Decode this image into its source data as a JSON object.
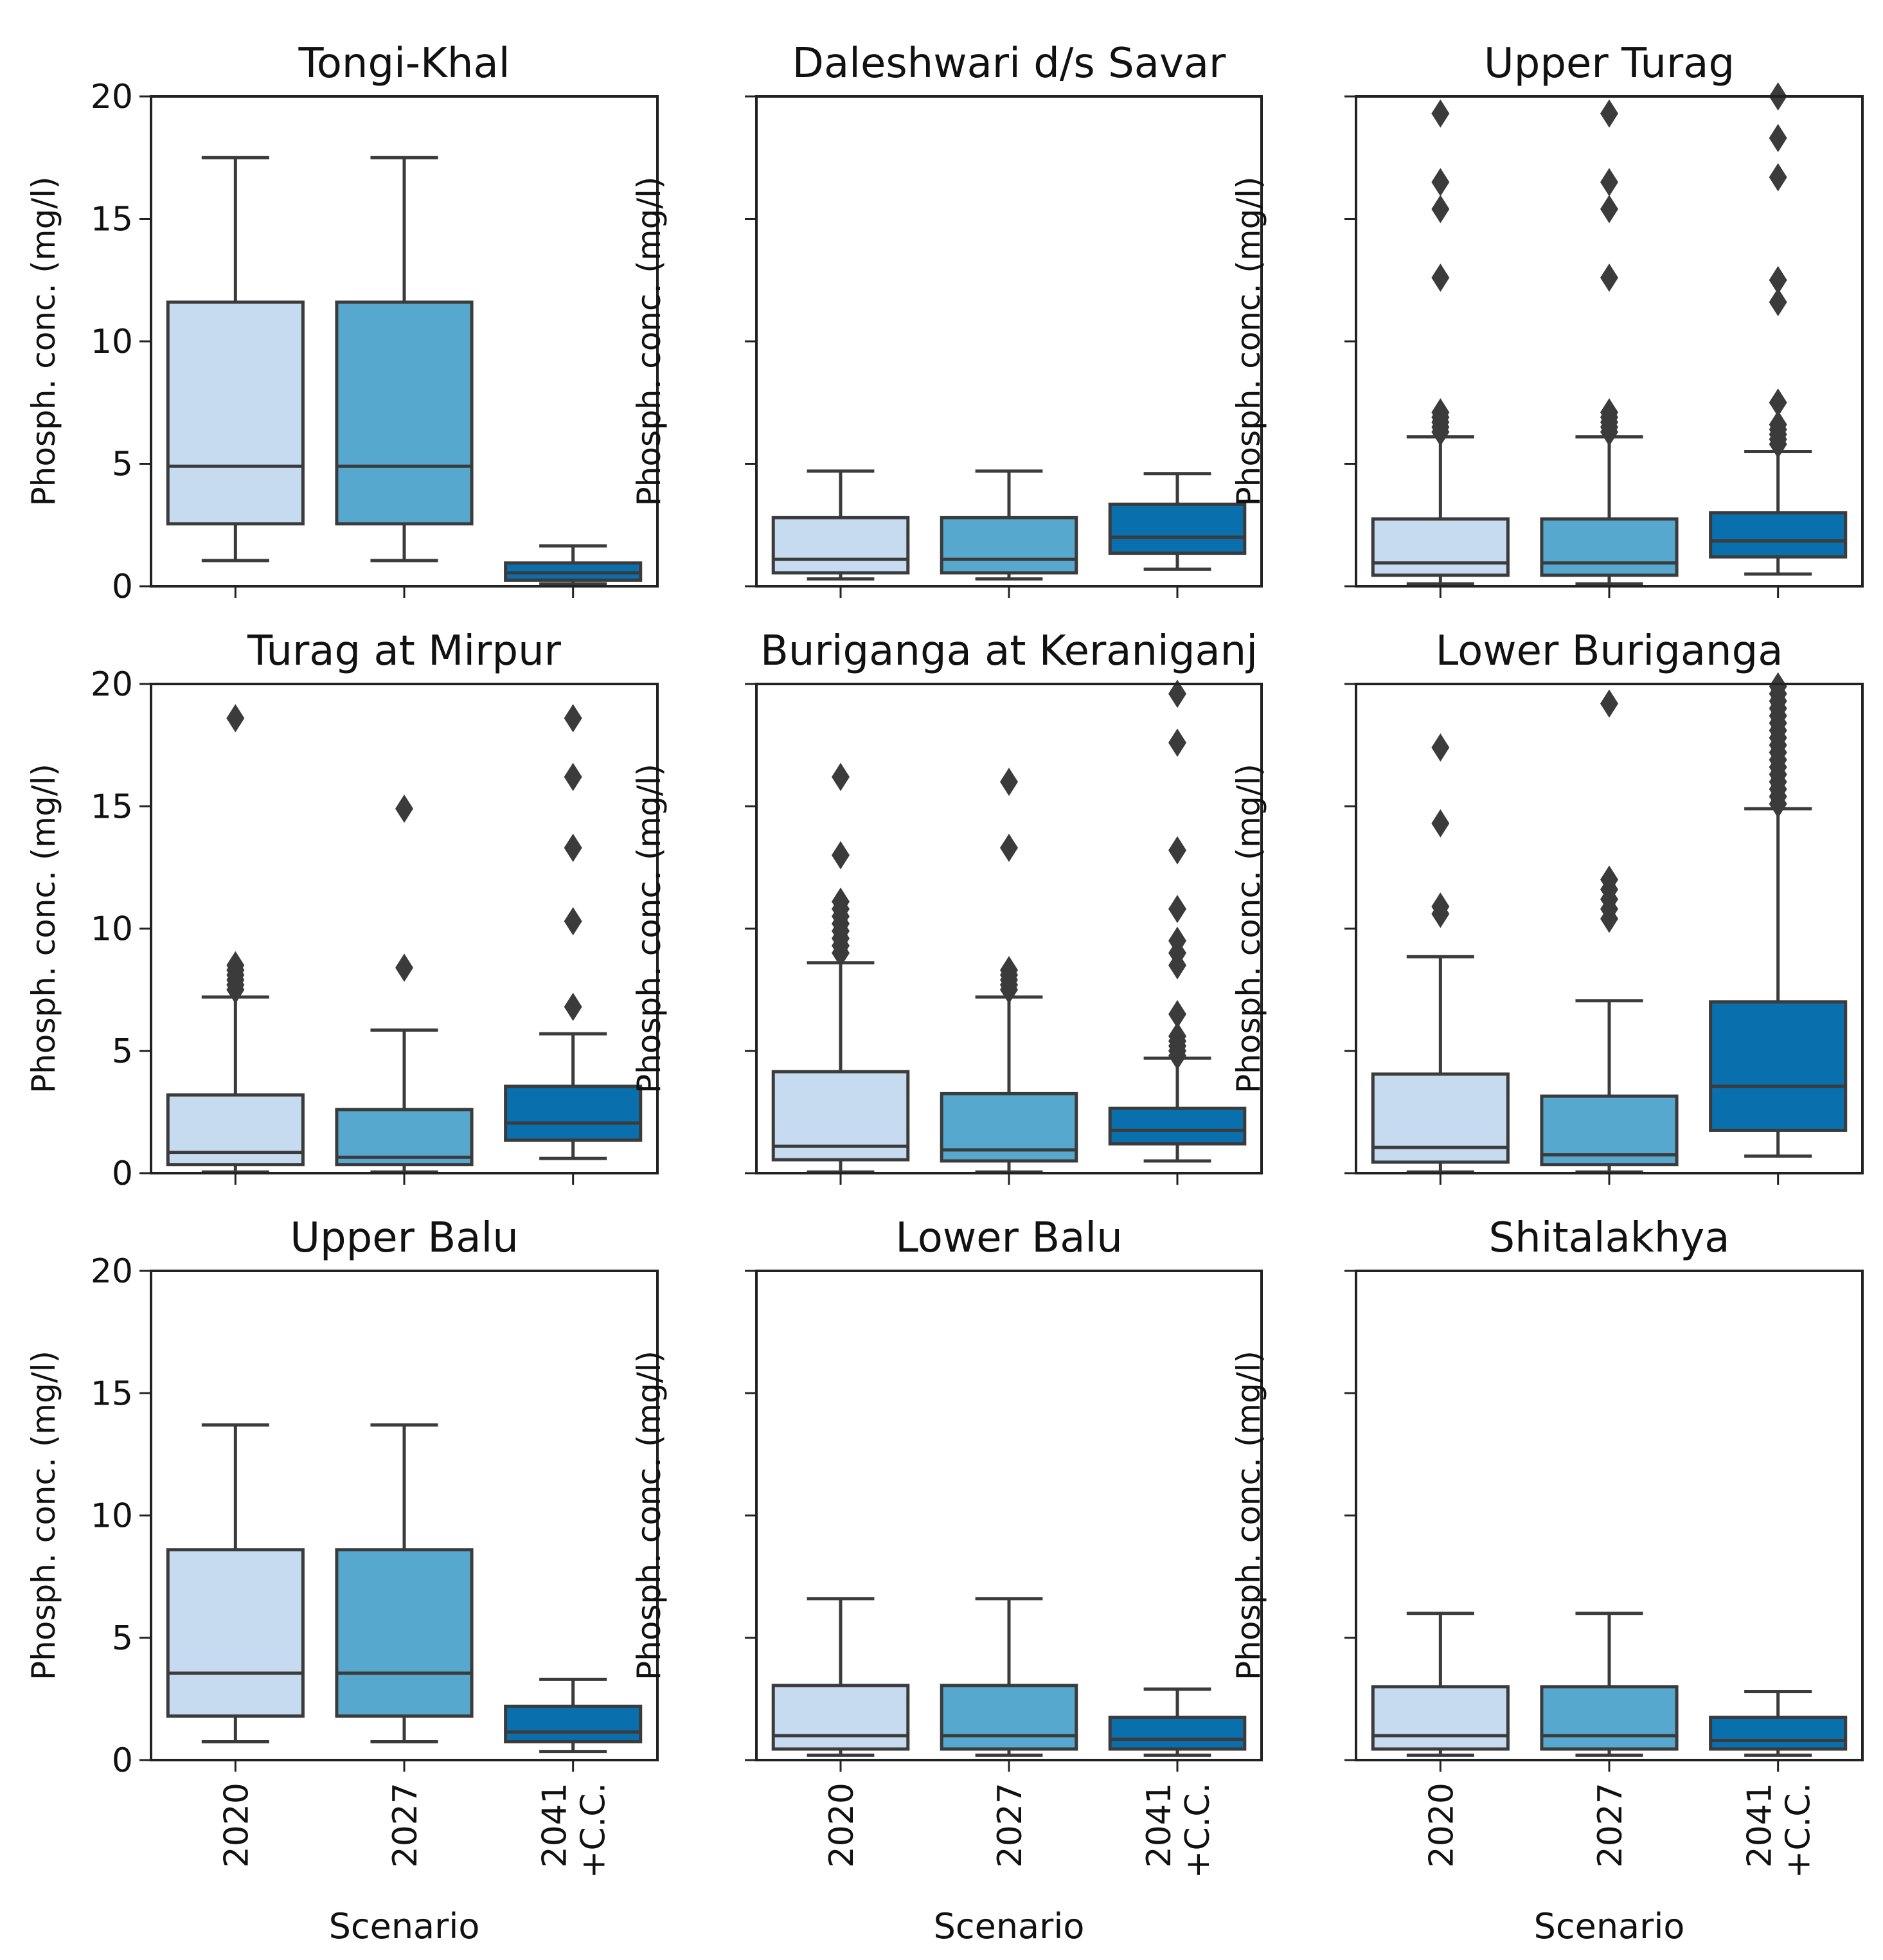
{
  "chart_data": {
    "type": "boxplot",
    "ylabel": "Phosph. conc. (mg/l)",
    "xlabel": "Scenario",
    "ylim": [
      0,
      20
    ],
    "yticks": [
      0,
      5,
      10,
      15,
      20
    ],
    "categories": [
      "2020",
      "2027",
      "2041\n+C.C."
    ],
    "category_labels": [
      [
        "2020"
      ],
      [
        "2027"
      ],
      [
        "2041",
        "+C.C."
      ]
    ],
    "colors": [
      "#c6dbef",
      "#56a8cf",
      "#0a6fad"
    ],
    "panels": [
      {
        "title": "Tongi-Khal",
        "boxes": [
          {
            "whislo": 1.05,
            "q1": 2.55,
            "med": 4.9,
            "q3": 11.6,
            "whishi": 17.5,
            "fliers": []
          },
          {
            "whislo": 1.05,
            "q1": 2.55,
            "med": 4.9,
            "q3": 11.6,
            "whishi": 17.5,
            "fliers": []
          },
          {
            "whislo": 0.1,
            "q1": 0.25,
            "med": 0.55,
            "q3": 0.95,
            "whishi": 1.65,
            "fliers": []
          }
        ]
      },
      {
        "title": "Daleshwari d/s Savar",
        "boxes": [
          {
            "whislo": 0.3,
            "q1": 0.55,
            "med": 1.1,
            "q3": 2.8,
            "whishi": 4.7,
            "fliers": []
          },
          {
            "whislo": 0.3,
            "q1": 0.55,
            "med": 1.1,
            "q3": 2.8,
            "whishi": 4.7,
            "fliers": []
          },
          {
            "whislo": 0.7,
            "q1": 1.35,
            "med": 2.0,
            "q3": 3.35,
            "whishi": 4.6,
            "fliers": []
          }
        ]
      },
      {
        "title": "Upper Turag",
        "boxes": [
          {
            "whislo": 0.1,
            "q1": 0.45,
            "med": 0.95,
            "q3": 2.75,
            "whishi": 6.1,
            "fliers": [
              6.3,
              6.5,
              6.7,
              6.9,
              7.1,
              12.6,
              15.4,
              16.5,
              19.3
            ]
          },
          {
            "whislo": 0.1,
            "q1": 0.45,
            "med": 0.95,
            "q3": 2.75,
            "whishi": 6.1,
            "fliers": [
              6.3,
              6.5,
              6.7,
              6.9,
              7.1,
              12.6,
              15.4,
              16.5,
              19.3
            ]
          },
          {
            "whislo": 0.5,
            "q1": 1.2,
            "med": 1.85,
            "q3": 3.0,
            "whishi": 5.5,
            "fliers": [
              5.8,
              6.0,
              6.2,
              6.4,
              6.6,
              7.5,
              11.6,
              12.5,
              16.7,
              18.3,
              20.0
            ]
          }
        ]
      },
      {
        "title": "Turag at Mirpur",
        "boxes": [
          {
            "whislo": 0.05,
            "q1": 0.35,
            "med": 0.85,
            "q3": 3.2,
            "whishi": 7.2,
            "fliers": [
              7.5,
              7.7,
              7.9,
              8.1,
              8.3,
              8.5,
              18.6
            ]
          },
          {
            "whislo": 0.05,
            "q1": 0.35,
            "med": 0.65,
            "q3": 2.6,
            "whishi": 5.85,
            "fliers": [
              8.4,
              14.9
            ]
          },
          {
            "whislo": 0.6,
            "q1": 1.35,
            "med": 2.05,
            "q3": 3.55,
            "whishi": 5.7,
            "fliers": [
              6.8,
              10.3,
              13.3,
              16.2,
              18.6
            ]
          }
        ]
      },
      {
        "title": "Buriganga at Keraniganj",
        "boxes": [
          {
            "whislo": 0.05,
            "q1": 0.55,
            "med": 1.1,
            "q3": 4.15,
            "whishi": 8.6,
            "fliers": [
              9.0,
              9.3,
              9.6,
              9.9,
              10.2,
              10.5,
              10.8,
              11.1,
              13.0,
              16.2
            ]
          },
          {
            "whislo": 0.05,
            "q1": 0.5,
            "med": 0.95,
            "q3": 3.25,
            "whishi": 7.2,
            "fliers": [
              7.5,
              7.7,
              7.9,
              8.1,
              8.3,
              13.3,
              16.0
            ]
          },
          {
            "whislo": 0.5,
            "q1": 1.2,
            "med": 1.75,
            "q3": 2.65,
            "whishi": 4.7,
            "fliers": [
              4.8,
              5.0,
              5.2,
              5.4,
              5.6,
              6.5,
              8.5,
              9.0,
              9.5,
              10.8,
              13.2,
              17.6,
              19.6
            ]
          }
        ]
      },
      {
        "title": "Lower Buriganga",
        "boxes": [
          {
            "whislo": 0.05,
            "q1": 0.45,
            "med": 1.05,
            "q3": 4.05,
            "whishi": 8.85,
            "fliers": [
              10.6,
              10.9,
              14.3,
              17.4
            ]
          },
          {
            "whislo": 0.05,
            "q1": 0.35,
            "med": 0.75,
            "q3": 3.15,
            "whishi": 7.05,
            "fliers": [
              10.4,
              10.8,
              11.2,
              11.6,
              12.0,
              19.2
            ]
          },
          {
            "whislo": 0.7,
            "q1": 1.75,
            "med": 3.55,
            "q3": 7.0,
            "whishi": 14.9,
            "fliers": [
              15.1,
              15.4,
              15.7,
              16.0,
              16.3,
              16.6,
              16.9,
              17.2,
              17.5,
              17.8,
              18.1,
              18.4,
              18.7,
              19.0,
              19.3,
              19.6,
              19.9
            ]
          }
        ]
      },
      {
        "title": "Upper Balu",
        "boxes": [
          {
            "whislo": 0.75,
            "q1": 1.8,
            "med": 3.55,
            "q3": 8.6,
            "whishi": 13.7,
            "fliers": []
          },
          {
            "whislo": 0.75,
            "q1": 1.8,
            "med": 3.55,
            "q3": 8.6,
            "whishi": 13.7,
            "fliers": []
          },
          {
            "whislo": 0.35,
            "q1": 0.75,
            "med": 1.15,
            "q3": 2.2,
            "whishi": 3.3,
            "fliers": []
          }
        ]
      },
      {
        "title": "Lower Balu",
        "boxes": [
          {
            "whislo": 0.2,
            "q1": 0.45,
            "med": 1.0,
            "q3": 3.05,
            "whishi": 6.6,
            "fliers": []
          },
          {
            "whislo": 0.2,
            "q1": 0.45,
            "med": 1.0,
            "q3": 3.05,
            "whishi": 6.6,
            "fliers": []
          },
          {
            "whislo": 0.2,
            "q1": 0.45,
            "med": 0.85,
            "q3": 1.75,
            "whishi": 2.9,
            "fliers": []
          }
        ]
      },
      {
        "title": "Shitalakhya",
        "boxes": [
          {
            "whislo": 0.2,
            "q1": 0.45,
            "med": 1.0,
            "q3": 3.0,
            "whishi": 6.0,
            "fliers": []
          },
          {
            "whislo": 0.2,
            "q1": 0.45,
            "med": 1.0,
            "q3": 3.0,
            "whishi": 6.0,
            "fliers": []
          },
          {
            "whislo": 0.2,
            "q1": 0.45,
            "med": 0.8,
            "q3": 1.75,
            "whishi": 2.8,
            "fliers": []
          }
        ]
      }
    ]
  }
}
